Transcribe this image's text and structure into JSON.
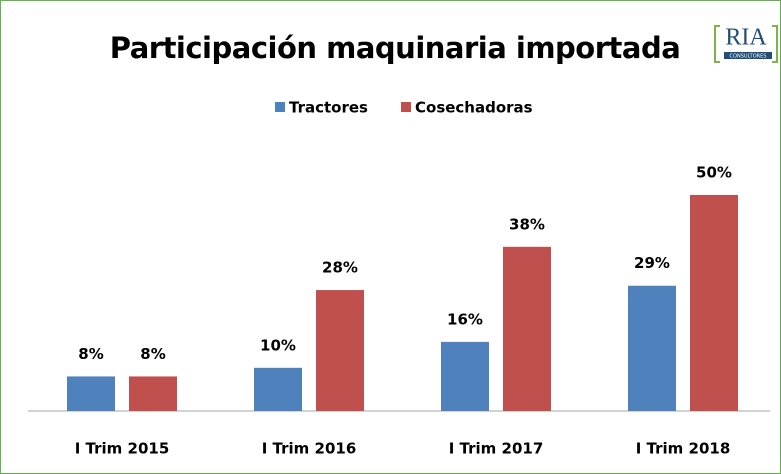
{
  "chart_data": {
    "type": "bar",
    "title": "Participación maquinaria importada",
    "logo": {
      "name": "RIA",
      "subtitle": "CONSULTORES"
    },
    "categories": [
      "I Trim 2015",
      "I Trim 2016",
      "I Trim 2017",
      "I Trim 2018"
    ],
    "series": [
      {
        "name": "Tractores",
        "color": "#4f81bd",
        "values": [
          8,
          10,
          16,
          29
        ],
        "value_labels": [
          "8%",
          "10%",
          "16%",
          "29%"
        ]
      },
      {
        "name": "Cosechadoras",
        "color": "#c0504d",
        "values": [
          8,
          28,
          38,
          50
        ],
        "value_labels": [
          "8%",
          "28%",
          "38%",
          "50%"
        ]
      }
    ],
    "legend": "top"
  }
}
